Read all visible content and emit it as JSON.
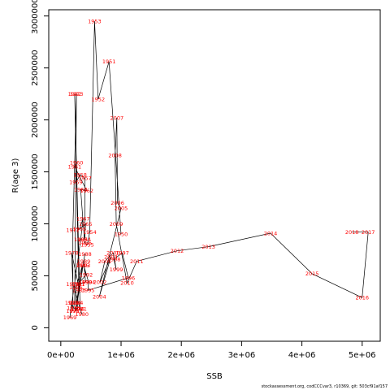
{
  "chart_data": {
    "type": "scatter",
    "connected": true,
    "title": "",
    "xlabel": "SSB",
    "ylabel": "R(age 3)",
    "xlim": [
      -200000,
      5300000
    ],
    "ylim": [
      -130000,
      3060000
    ],
    "x_ticks": [
      0,
      1000000,
      2000000,
      3000000,
      4000000,
      5000000
    ],
    "x_tick_labels": [
      "0e+00",
      "1e+06",
      "2e+06",
      "3e+06",
      "4e+06",
      "5e+06"
    ],
    "y_ticks": [
      0,
      500000,
      1000000,
      1500000,
      2000000,
      2500000,
      3000000
    ],
    "y_tick_labels": [
      "0",
      "500000",
      "1000000",
      "1500000",
      "2000000",
      "2500000",
      "3000000"
    ],
    "grid": false,
    "line_color": "#000000",
    "label_color": "#ff0000",
    "points": [
      {
        "year": "1950",
        "x": 1000000,
        "y": 900000
      },
      {
        "year": "1951",
        "x": 800000,
        "y": 2560000
      },
      {
        "year": "1952",
        "x": 620000,
        "y": 2200000
      },
      {
        "year": "1953",
        "x": 560000,
        "y": 2950000
      },
      {
        "year": "1954",
        "x": 480000,
        "y": 920000
      },
      {
        "year": "1955",
        "x": 440000,
        "y": 800000
      },
      {
        "year": "1956",
        "x": 400000,
        "y": 820000
      },
      {
        "year": "1957",
        "x": 400000,
        "y": 1440000
      },
      {
        "year": "1958",
        "x": 320000,
        "y": 1470000
      },
      {
        "year": "1959",
        "x": 250000,
        "y": 1400000
      },
      {
        "year": "1960",
        "x": 260000,
        "y": 1590000
      },
      {
        "year": "1961",
        "x": 230000,
        "y": 1550000
      },
      {
        "year": "1962",
        "x": 430000,
        "y": 1320000
      },
      {
        "year": "1963",
        "x": 330000,
        "y": 1330000
      },
      {
        "year": "1964",
        "x": 390000,
        "y": 850000
      },
      {
        "year": "1965",
        "x": 410000,
        "y": 1000000
      },
      {
        "year": "1966",
        "x": 310000,
        "y": 950000
      },
      {
        "year": "1967",
        "x": 370000,
        "y": 1050000
      },
      {
        "year": "1968",
        "x": 330000,
        "y": 850000
      },
      {
        "year": "1969",
        "x": 150000,
        "y": 100000
      },
      {
        "year": "1970",
        "x": 180000,
        "y": 240000
      },
      {
        "year": "1971",
        "x": 200000,
        "y": 160000
      },
      {
        "year": "1972",
        "x": 200000,
        "y": 940000
      },
      {
        "year": "1973",
        "x": 260000,
        "y": 2250000
      },
      {
        "year": "1974",
        "x": 230000,
        "y": 240000
      },
      {
        "year": "1975",
        "x": 210000,
        "y": 190000
      },
      {
        "year": "1976",
        "x": 280000,
        "y": 180000
      },
      {
        "year": "1977",
        "x": 290000,
        "y": 420000
      },
      {
        "year": "1978",
        "x": 180000,
        "y": 720000
      },
      {
        "year": "1979",
        "x": 200000,
        "y": 420000
      },
      {
        "year": "1980",
        "x": 350000,
        "y": 130000
      },
      {
        "year": "1981",
        "x": 320000,
        "y": 180000
      },
      {
        "year": "1982",
        "x": 230000,
        "y": 2250000
      },
      {
        "year": "1983",
        "x": 300000,
        "y": 360000
      },
      {
        "year": "1984",
        "x": 260000,
        "y": 240000
      },
      {
        "year": "1985",
        "x": 360000,
        "y": 600000
      },
      {
        "year": "1986",
        "x": 250000,
        "y": 390000
      },
      {
        "year": "1987",
        "x": 250000,
        "y": 160000
      },
      {
        "year": "1988",
        "x": 400000,
        "y": 710000
      },
      {
        "year": "1989",
        "x": 380000,
        "y": 640000
      },
      {
        "year": "1990",
        "x": 410000,
        "y": 440000
      },
      {
        "year": "1991",
        "x": 290000,
        "y": 420000
      },
      {
        "year": "1992",
        "x": 420000,
        "y": 510000
      },
      {
        "year": "1993",
        "x": 380000,
        "y": 600000
      },
      {
        "year": "1994",
        "x": 460000,
        "y": 440000
      },
      {
        "year": "1995",
        "x": 450000,
        "y": 360000
      },
      {
        "year": "1996",
        "x": 1120000,
        "y": 480000
      },
      {
        "year": "1997",
        "x": 1020000,
        "y": 720000
      },
      {
        "year": "1998",
        "x": 880000,
        "y": 660000
      },
      {
        "year": "1999",
        "x": 920000,
        "y": 560000
      },
      {
        "year": "2000",
        "x": 870000,
        "y": 720000
      },
      {
        "year": "2001",
        "x": 730000,
        "y": 640000
      },
      {
        "year": "2002",
        "x": 650000,
        "y": 440000
      },
      {
        "year": "2003",
        "x": 830000,
        "y": 680000
      },
      {
        "year": "2004",
        "x": 640000,
        "y": 300000
      },
      {
        "year": "2005",
        "x": 1000000,
        "y": 1150000
      },
      {
        "year": "2006",
        "x": 940000,
        "y": 1200000
      },
      {
        "year": "2007",
        "x": 930000,
        "y": 2020000
      },
      {
        "year": "2008",
        "x": 900000,
        "y": 1660000
      },
      {
        "year": "2009",
        "x": 920000,
        "y": 1000000
      },
      {
        "year": "2010",
        "x": 1100000,
        "y": 430000
      },
      {
        "year": "2011",
        "x": 1260000,
        "y": 640000
      },
      {
        "year": "2012",
        "x": 1930000,
        "y": 740000
      },
      {
        "year": "2013",
        "x": 2450000,
        "y": 780000
      },
      {
        "year": "2014",
        "x": 3480000,
        "y": 910000
      },
      {
        "year": "2015",
        "x": 4170000,
        "y": 520000
      },
      {
        "year": "2016",
        "x": 5000000,
        "y": 290000
      },
      {
        "year": "2017",
        "x": 5100000,
        "y": 920000
      },
      {
        "year": "2018",
        "x": 4830000,
        "y": 920000
      }
    ]
  },
  "footer": {
    "caption": "stockassessment.org, codCCCvar3, r10369, git: 503cf91af157"
  }
}
